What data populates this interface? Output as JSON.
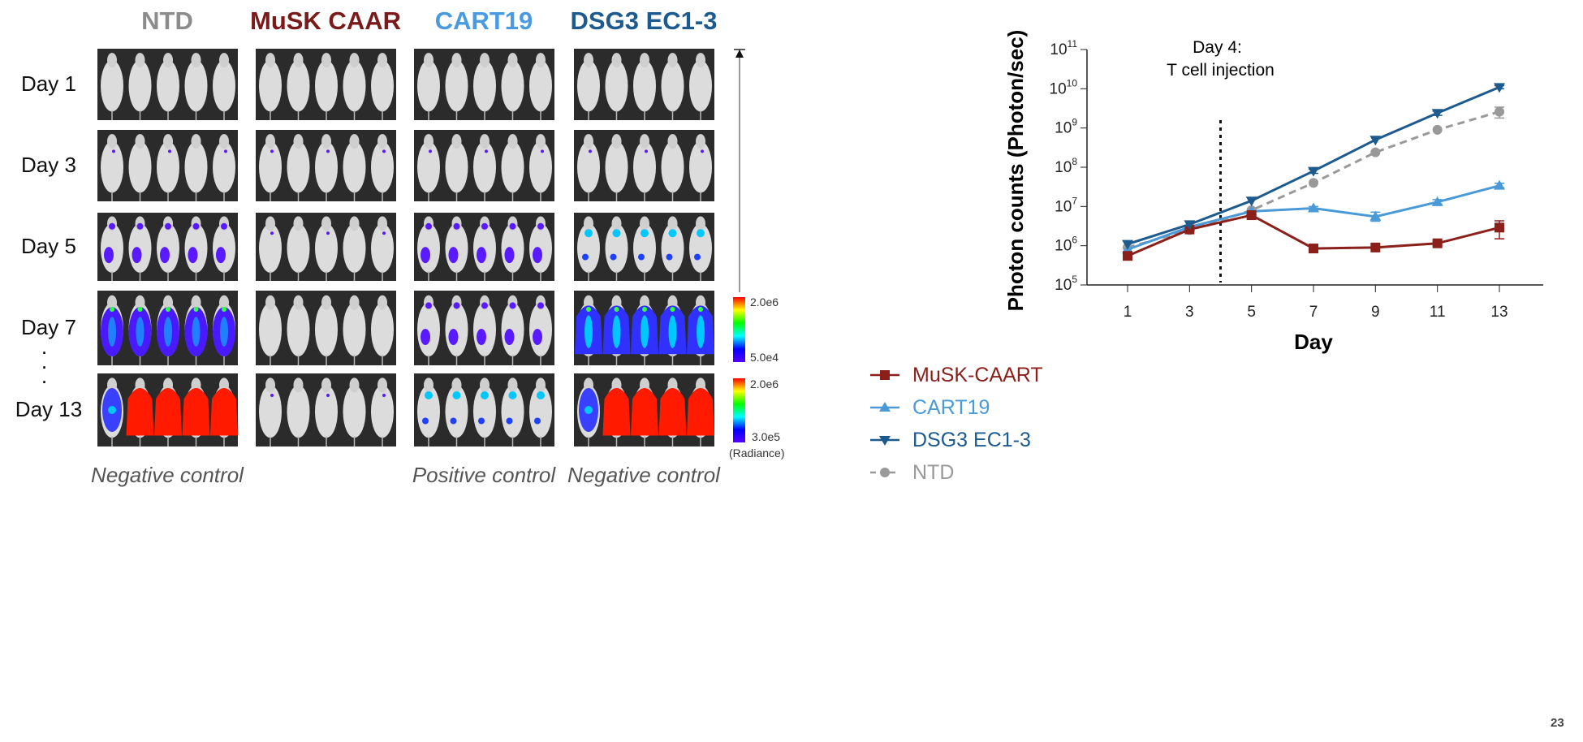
{
  "columns": [
    {
      "label": "NTD",
      "color": "#8c8c8c"
    },
    {
      "label": "MuSK CAAR",
      "color": "#7b1a1a"
    },
    {
      "label": "CART19",
      "color": "#4a9ae0"
    },
    {
      "label": "DSG3 EC1-3",
      "color": "#1d5a8e"
    }
  ],
  "rows": [
    "Day 1",
    "Day 3",
    "Day 5",
    "Day 7",
    "Day 13"
  ],
  "ellipsis": "·",
  "signal_levels": [
    [
      0,
      0,
      0,
      0
    ],
    [
      1,
      1,
      1,
      1
    ],
    [
      2,
      1,
      2,
      3
    ],
    [
      4,
      0,
      2,
      5
    ],
    [
      6,
      1,
      3,
      6
    ]
  ],
  "captions": [
    "Negative control",
    "",
    "Positive control",
    "Negative control"
  ],
  "colorbars": [
    {
      "max": "2.0e6",
      "min": "5.0e4"
    },
    {
      "max": "2.0e6",
      "min": "3.0e5"
    }
  ],
  "colorbar_unit": "(Radiance)",
  "page_number": "23",
  "chart_data": {
    "type": "line",
    "xlabel": "Day",
    "ylabel": "Photon counts (Photon/sec)",
    "x": [
      1,
      3,
      5,
      7,
      9,
      11,
      13
    ],
    "xticks": [
      "1",
      "3",
      "5",
      "7",
      "9",
      "11",
      "13"
    ],
    "yscale": "log",
    "ylim": [
      100000.0,
      100000000000.0
    ],
    "yticks": [
      {
        "base": "10",
        "exp": "5"
      },
      {
        "base": "10",
        "exp": "6"
      },
      {
        "base": "10",
        "exp": "7"
      },
      {
        "base": "10",
        "exp": "8"
      },
      {
        "base": "10",
        "exp": "9"
      },
      {
        "base": "10",
        "exp": "10"
      },
      {
        "base": "10",
        "exp": "11"
      }
    ],
    "annotation": {
      "x": 4,
      "line1": "Day 4:",
      "line2": "T cell injection"
    },
    "legend_position": "bottom",
    "series": [
      {
        "name": "MuSK-CAART",
        "color": "#8b1f1a",
        "marker": "square",
        "dash": false,
        "values": [
          550000.0,
          2600000.0,
          6000000.0,
          850000.0,
          900000.0,
          1150000.0,
          2900000.0
        ],
        "err": [
          [
            450000.0,
            650000.0
          ],
          null,
          null,
          null,
          null,
          [
            1000000.0,
            1300000.0
          ],
          [
            1500000.0,
            4300000.0
          ]
        ]
      },
      {
        "name": "CART19",
        "color": "#4a9ad8",
        "marker": "triangle-up",
        "dash": false,
        "values": [
          800000.0,
          3000000.0,
          7500000.0,
          9000000.0,
          5500000.0,
          13000000.0,
          34000000.0
        ],
        "err": [
          null,
          null,
          null,
          [
            8000000.0,
            10000000.0
          ],
          [
            4200000.0,
            7200000.0
          ],
          [
            11500000.0,
            15000000.0
          ],
          [
            30000000.0,
            39000000.0
          ]
        ]
      },
      {
        "name": "DSG3 EC1-3",
        "color": "#1d5a8e",
        "marker": "triangle-down",
        "dash": false,
        "values": [
          1100000.0,
          3500000.0,
          14000000.0,
          80000000.0,
          500000000.0,
          2400000000.0,
          11000000000.0
        ],
        "err": [
          null,
          null,
          null,
          [
            70000000.0,
            90000000.0
          ],
          null,
          [
            2100000000.0,
            2700000000.0
          ],
          [
            10000000000.0,
            12000000000.0
          ]
        ]
      },
      {
        "name": "NTD",
        "color": "#999999",
        "marker": "circle",
        "dash": true,
        "values": [
          900000.0,
          2500000.0,
          8000000.0,
          40000000.0,
          240000000.0,
          900000000.0,
          2600000000.0
        ],
        "err": [
          null,
          null,
          null,
          null,
          null,
          null,
          [
            1800000000.0,
            3400000000.0
          ]
        ]
      }
    ]
  }
}
